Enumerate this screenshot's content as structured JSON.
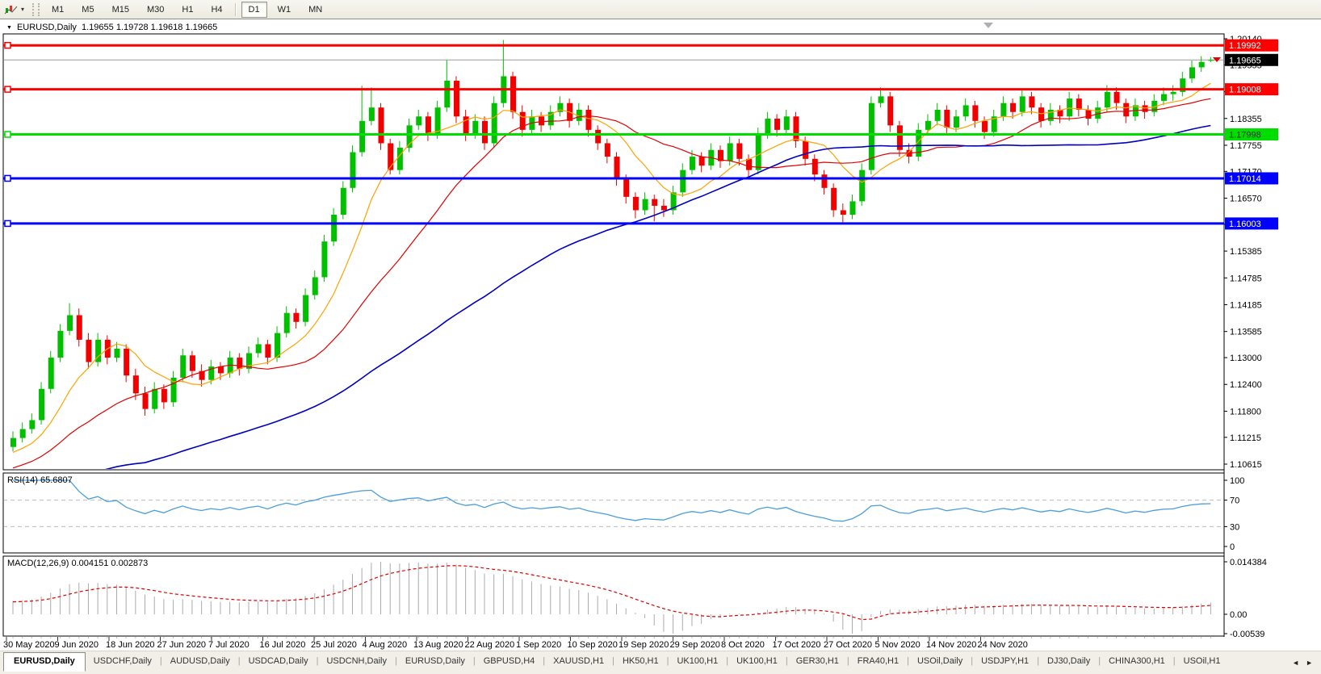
{
  "toolbar": {
    "timeframes": [
      {
        "label": "M1"
      },
      {
        "label": "M5"
      },
      {
        "label": "M15"
      },
      {
        "label": "M30"
      },
      {
        "label": "H1"
      },
      {
        "label": "H4"
      },
      {
        "label": "D1"
      },
      {
        "label": "W1"
      },
      {
        "label": "MN"
      }
    ],
    "active_timeframe": "D1",
    "dropdown_caret": "▾"
  },
  "chart": {
    "title": {
      "text": "EURUSD,Daily  1.19655 1.19728 1.19618 1.19665",
      "marker": "▼"
    },
    "colors": {
      "bull": "#00C000",
      "bear": "#F20000",
      "wick_bull": "#00C000",
      "wick_bear": "#F20000",
      "ma_fast": "#FFA200",
      "ma_mid": "#E00000",
      "ma_slow": "#0000C0",
      "rsi": "#4A9EDC",
      "rsi_level": "#BDBDBD",
      "macd_bar": "#ABABAB",
      "macd_signal": "#E00000",
      "current_line": "#9C9C9C",
      "axis_text": "#000000",
      "panel_border": "#000000",
      "date_tick": "#BDBDBD",
      "shift_marker": "#AFAFAF",
      "last_price_arrow": "#E00000"
    },
    "price_axis": {
      "ticks": [
        "1.20140",
        "1.19555",
        "1.18955",
        "1.18355",
        "1.17755",
        "1.17170",
        "1.16570",
        "1.15985",
        "1.15385",
        "1.14785",
        "1.14185",
        "1.13585",
        "1.13000",
        "1.12400",
        "1.11800",
        "1.11215",
        "1.10615"
      ],
      "current_price": {
        "label": "1.19665",
        "value": 1.19665,
        "bg": "#000000",
        "fg": "#FFFFFF"
      }
    },
    "hlines": [
      {
        "label": "1.19992",
        "value": 1.19992,
        "color": "#FF0000",
        "text": "#FFFFFF"
      },
      {
        "label": "1.19008",
        "value": 1.19008,
        "color": "#FF0000",
        "text": "#FFFFFF"
      },
      {
        "label": "1.17998",
        "value": 1.17998,
        "color": "#00DE00",
        "text": "#003300"
      },
      {
        "label": "1.17014",
        "value": 1.17014,
        "color": "#0000FF",
        "text": "#FFFFFF"
      },
      {
        "label": "1.16003",
        "value": 1.16003,
        "color": "#0000FF",
        "text": "#FFFFFF"
      }
    ],
    "indicators": {
      "rsi": {
        "label": "RSI(14) 65.6807",
        "period": 14,
        "levels": [
          70,
          30
        ],
        "axis": [
          {
            "v": 100,
            "label": "100"
          },
          {
            "v": 70,
            "label": "70"
          },
          {
            "v": 30,
            "label": "30"
          },
          {
            "v": 0,
            "label": "0"
          }
        ]
      },
      "macd": {
        "label": "MACD(12,26,9) 0.004151 0.002873",
        "fast": 12,
        "slow": 26,
        "signal": 9,
        "axis": [
          {
            "pos": "max",
            "label": "0.014384"
          },
          {
            "pos": "zero",
            "label": "0.00"
          },
          {
            "pos": "min",
            "label": "-0.00539"
          }
        ]
      },
      "moving_averages": [
        {
          "period": 8,
          "color_key": "ma_fast"
        },
        {
          "period": 20,
          "color_key": "ma_mid"
        },
        {
          "period": 55,
          "color_key": "ma_slow"
        }
      ]
    },
    "date_axis": [
      "30 May 2020",
      "9 Jun 2020",
      "18 Jun 2020",
      "27 Jun 2020",
      "7 Jul 2020",
      "16 Jul 2020",
      "25 Jul 2020",
      "4 Aug 2020",
      "13 Aug 2020",
      "22 Aug 2020",
      "1 Sep 2020",
      "10 Sep 2020",
      "19 Sep 2020",
      "29 Sep 2020",
      "8 Oct 2020",
      "17 Oct 2020",
      "27 Oct 2020",
      "5 Nov 2020",
      "14 Nov 2020",
      "24 Nov 2020"
    ]
  },
  "chart_data": {
    "type": "candlestick",
    "symbol": "EURUSD",
    "timeframe": "Daily",
    "ylim": [
      1.10615,
      1.2014
    ],
    "x_labels": [
      "30 May 2020",
      "9 Jun 2020",
      "18 Jun 2020",
      "27 Jun 2020",
      "7 Jul 2020",
      "16 Jul 2020",
      "25 Jul 2020",
      "4 Aug 2020",
      "13 Aug 2020",
      "22 Aug 2020",
      "1 Sep 2020",
      "10 Sep 2020",
      "19 Sep 2020",
      "29 Sep 2020",
      "8 Oct 2020",
      "17 Oct 2020",
      "27 Oct 2020",
      "5 Nov 2020",
      "14 Nov 2020",
      "24 Nov 2020"
    ],
    "ohlc": [
      [
        1.11,
        1.1135,
        1.109,
        1.112
      ],
      [
        1.112,
        1.1155,
        1.111,
        1.114
      ],
      [
        1.114,
        1.1175,
        1.113,
        1.116
      ],
      [
        1.116,
        1.1245,
        1.115,
        1.123
      ],
      [
        1.123,
        1.1315,
        1.122,
        1.13
      ],
      [
        1.13,
        1.1375,
        1.129,
        1.136
      ],
      [
        1.136,
        1.1422,
        1.135,
        1.1395
      ],
      [
        1.1395,
        1.141,
        1.1325,
        1.134
      ],
      [
        1.134,
        1.1355,
        1.1275,
        1.129
      ],
      [
        1.129,
        1.1355,
        1.128,
        1.134
      ],
      [
        1.134,
        1.135,
        1.1285,
        1.13
      ],
      [
        1.13,
        1.1335,
        1.129,
        1.132
      ],
      [
        1.132,
        1.133,
        1.1245,
        1.126
      ],
      [
        1.126,
        1.1275,
        1.1205,
        1.122
      ],
      [
        1.122,
        1.1235,
        1.117,
        1.1185
      ],
      [
        1.1185,
        1.1245,
        1.1175,
        1.123
      ],
      [
        1.123,
        1.124,
        1.1185,
        1.12
      ],
      [
        1.12,
        1.127,
        1.119,
        1.1255
      ],
      [
        1.1255,
        1.132,
        1.1245,
        1.1305
      ],
      [
        1.1305,
        1.1315,
        1.1255,
        1.127
      ],
      [
        1.127,
        1.1285,
        1.1235,
        1.125
      ],
      [
        1.125,
        1.1295,
        1.124,
        1.128
      ],
      [
        1.128,
        1.129,
        1.125,
        1.1265
      ],
      [
        1.1265,
        1.1315,
        1.1255,
        1.13
      ],
      [
        1.13,
        1.131,
        1.126,
        1.1275
      ],
      [
        1.1275,
        1.1325,
        1.1265,
        1.131
      ],
      [
        1.131,
        1.1345,
        1.13,
        1.133
      ],
      [
        1.133,
        1.134,
        1.1285,
        1.13
      ],
      [
        1.13,
        1.137,
        1.129,
        1.1355
      ],
      [
        1.1355,
        1.1415,
        1.1345,
        1.14
      ],
      [
        1.14,
        1.141,
        1.1365,
        1.138
      ],
      [
        1.138,
        1.1455,
        1.137,
        1.144
      ],
      [
        1.144,
        1.1495,
        1.143,
        1.148
      ],
      [
        1.148,
        1.1575,
        1.147,
        1.156
      ],
      [
        1.156,
        1.1635,
        1.155,
        1.162
      ],
      [
        1.162,
        1.1695,
        1.161,
        1.168
      ],
      [
        1.168,
        1.1775,
        1.167,
        1.176
      ],
      [
        1.176,
        1.1909,
        1.175,
        1.183
      ],
      [
        1.183,
        1.1905,
        1.182,
        1.186
      ],
      [
        1.186,
        1.187,
        1.1765,
        1.178
      ],
      [
        1.178,
        1.179,
        1.171,
        1.172
      ],
      [
        1.172,
        1.1785,
        1.171,
        1.177
      ],
      [
        1.177,
        1.1835,
        1.176,
        1.182
      ],
      [
        1.182,
        1.1855,
        1.181,
        1.184
      ],
      [
        1.184,
        1.185,
        1.1785,
        1.18
      ],
      [
        1.18,
        1.1875,
        1.179,
        1.186
      ],
      [
        1.186,
        1.1966,
        1.185,
        1.192
      ],
      [
        1.192,
        1.193,
        1.1825,
        1.184
      ],
      [
        1.184,
        1.1855,
        1.1785,
        1.18
      ],
      [
        1.18,
        1.1845,
        1.179,
        1.183
      ],
      [
        1.183,
        1.184,
        1.1765,
        1.178
      ],
      [
        1.178,
        1.1885,
        1.177,
        1.187
      ],
      [
        1.187,
        1.2011,
        1.186,
        1.193
      ],
      [
        1.193,
        1.194,
        1.1835,
        1.185
      ],
      [
        1.185,
        1.1865,
        1.1795,
        1.181
      ],
      [
        1.181,
        1.1855,
        1.18,
        1.184
      ],
      [
        1.184,
        1.185,
        1.1805,
        1.182
      ],
      [
        1.182,
        1.1865,
        1.181,
        1.185
      ],
      [
        1.185,
        1.1885,
        1.184,
        1.187
      ],
      [
        1.187,
        1.188,
        1.1815,
        1.183
      ],
      [
        1.183,
        1.187,
        1.182,
        1.1855
      ],
      [
        1.1855,
        1.1865,
        1.1795,
        1.181
      ],
      [
        1.181,
        1.182,
        1.1765,
        1.178
      ],
      [
        1.178,
        1.179,
        1.1735,
        1.175
      ],
      [
        1.175,
        1.176,
        1.1685,
        1.17
      ],
      [
        1.17,
        1.171,
        1.1645,
        1.166
      ],
      [
        1.166,
        1.167,
        1.1612,
        1.163
      ],
      [
        1.163,
        1.167,
        1.162,
        1.1655
      ],
      [
        1.1655,
        1.1665,
        1.1605,
        1.164
      ],
      [
        1.164,
        1.1655,
        1.1615,
        1.163
      ],
      [
        1.163,
        1.1685,
        1.162,
        1.167
      ],
      [
        1.167,
        1.1735,
        1.166,
        1.172
      ],
      [
        1.172,
        1.1765,
        1.171,
        1.175
      ],
      [
        1.175,
        1.176,
        1.1715,
        1.173
      ],
      [
        1.173,
        1.178,
        1.172,
        1.1765
      ],
      [
        1.1765,
        1.1775,
        1.1725,
        1.174
      ],
      [
        1.174,
        1.1795,
        1.173,
        1.178
      ],
      [
        1.178,
        1.179,
        1.173,
        1.1745
      ],
      [
        1.1745,
        1.1755,
        1.1705,
        1.172
      ],
      [
        1.172,
        1.1815,
        1.171,
        1.18
      ],
      [
        1.18,
        1.185,
        1.179,
        1.1835
      ],
      [
        1.1835,
        1.1845,
        1.1795,
        1.181
      ],
      [
        1.181,
        1.1855,
        1.18,
        1.184
      ],
      [
        1.184,
        1.185,
        1.177,
        1.1785
      ],
      [
        1.1785,
        1.1795,
        1.173,
        1.1745
      ],
      [
        1.1745,
        1.1755,
        1.1695,
        1.171
      ],
      [
        1.171,
        1.172,
        1.1665,
        1.168
      ],
      [
        1.168,
        1.169,
        1.1615,
        1.163
      ],
      [
        1.163,
        1.1645,
        1.1603,
        1.162
      ],
      [
        1.162,
        1.1665,
        1.161,
        1.165
      ],
      [
        1.165,
        1.1735,
        1.164,
        1.172
      ],
      [
        1.172,
        1.1885,
        1.171,
        1.187
      ],
      [
        1.187,
        1.1905,
        1.186,
        1.1885
      ],
      [
        1.1885,
        1.1895,
        1.1805,
        1.182
      ],
      [
        1.182,
        1.183,
        1.175,
        1.1765
      ],
      [
        1.1765,
        1.178,
        1.1735,
        1.175
      ],
      [
        1.175,
        1.1825,
        1.174,
        1.181
      ],
      [
        1.181,
        1.1845,
        1.18,
        1.183
      ],
      [
        1.183,
        1.187,
        1.182,
        1.1855
      ],
      [
        1.1855,
        1.1865,
        1.18,
        1.1815
      ],
      [
        1.1815,
        1.1855,
        1.1805,
        1.184
      ],
      [
        1.184,
        1.188,
        1.183,
        1.1865
      ],
      [
        1.1865,
        1.1875,
        1.1815,
        1.183
      ],
      [
        1.183,
        1.184,
        1.179,
        1.1805
      ],
      [
        1.1805,
        1.1855,
        1.1795,
        1.184
      ],
      [
        1.184,
        1.1885,
        1.183,
        1.187
      ],
      [
        1.187,
        1.188,
        1.1835,
        1.185
      ],
      [
        1.185,
        1.19,
        1.184,
        1.1885
      ],
      [
        1.1885,
        1.1895,
        1.1845,
        1.186
      ],
      [
        1.186,
        1.187,
        1.1815,
        1.183
      ],
      [
        1.183,
        1.187,
        1.182,
        1.1855
      ],
      [
        1.1855,
        1.1865,
        1.1825,
        1.184
      ],
      [
        1.184,
        1.1895,
        1.183,
        1.188
      ],
      [
        1.188,
        1.189,
        1.184,
        1.1855
      ],
      [
        1.1855,
        1.1865,
        1.182,
        1.1835
      ],
      [
        1.1835,
        1.1875,
        1.1825,
        1.186
      ],
      [
        1.186,
        1.191,
        1.185,
        1.1895
      ],
      [
        1.1895,
        1.1905,
        1.1855,
        1.187
      ],
      [
        1.187,
        1.188,
        1.1825,
        1.184
      ],
      [
        1.184,
        1.188,
        1.183,
        1.1865
      ],
      [
        1.1865,
        1.1875,
        1.1835,
        1.185
      ],
      [
        1.185,
        1.189,
        1.184,
        1.1875
      ],
      [
        1.1875,
        1.1905,
        1.1865,
        1.189
      ],
      [
        1.189,
        1.191,
        1.1875,
        1.1895
      ],
      [
        1.1895,
        1.194,
        1.1885,
        1.1925
      ],
      [
        1.1925,
        1.1965,
        1.1915,
        1.195
      ],
      [
        1.195,
        1.1975,
        1.194,
        1.1962
      ],
      [
        1.19655,
        1.19728,
        1.19618,
        1.19665
      ]
    ]
  },
  "tabs": {
    "items": [
      "EURUSD,Daily",
      "USDCHF,Daily",
      "AUDUSD,Daily",
      "USDCAD,Daily",
      "USDCNH,Daily",
      "EURUSD,Daily",
      "GBPUSD,H4",
      "XAUUSD,H1",
      "HK50,H1",
      "UK100,H1",
      "UK100,H1",
      "GER30,H1",
      "FRA40,H1",
      "USOil,Daily",
      "USDJPY,H1",
      "DJ30,Daily",
      "CHINA300,H1",
      "USOil,H1"
    ],
    "active_index": 0,
    "scroll_left": "◄",
    "scroll_right": "►"
  }
}
